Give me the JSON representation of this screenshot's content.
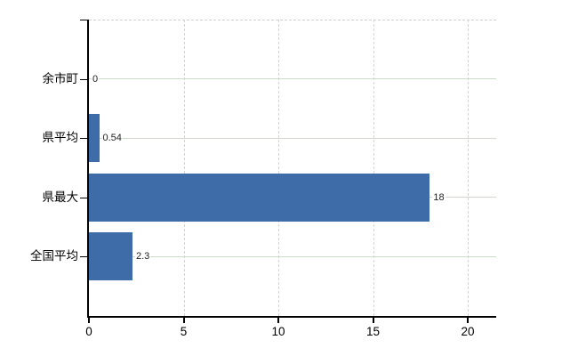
{
  "chart_data": {
    "type": "bar",
    "orientation": "horizontal",
    "title": "",
    "xlabel": "",
    "ylabel": "",
    "categories": [
      "余市町",
      "県平均",
      "県最大",
      "全国平均"
    ],
    "values": [
      0,
      0.54,
      18,
      2.3
    ],
    "value_labels": [
      "0",
      "0.54",
      "18",
      "2.3"
    ],
    "x_ticks": [
      0,
      5,
      10,
      15,
      20
    ],
    "x_tick_labels": [
      "0",
      "5",
      "10",
      "15",
      "20"
    ],
    "xlim": [
      0,
      21.5
    ],
    "grid": true,
    "legend": false
  },
  "colors": {
    "bar": "#3e6ca8",
    "axis": "#000000",
    "h_grid": "#cfd9ce",
    "v_grid": "#d6d3d6",
    "top_border": "#d0ced0",
    "text": "#222222",
    "background": "#ffffff"
  }
}
